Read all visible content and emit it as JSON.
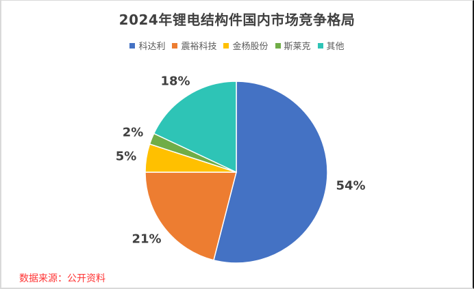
{
  "chart_data": {
    "type": "pie",
    "title": "2024年锂电结构件国内市场竞争格局",
    "categories": [
      "科达利",
      "震裕科技",
      "金杨股份",
      "斯莱克",
      "其他"
    ],
    "values": [
      54,
      21,
      5,
      2,
      18
    ],
    "unit": "%",
    "colors": [
      "#4472C4",
      "#ED7D31",
      "#FFC000",
      "#70AD47",
      "#2EC4B6"
    ],
    "data_labels": [
      "54%",
      "21%",
      "5%",
      "2%",
      "18%"
    ],
    "legend_position": "top",
    "start_angle_deg": 0,
    "direction": "clockwise",
    "source_note": "数据来源：公开资料"
  },
  "title": "2024年锂电结构件国内市场竞争格局",
  "legend": [
    {
      "label": "科达利",
      "color": "#4472C4"
    },
    {
      "label": "震裕科技",
      "color": "#ED7D31"
    },
    {
      "label": "金杨股份",
      "color": "#FFC000"
    },
    {
      "label": "斯莱克",
      "color": "#70AD47"
    },
    {
      "label": "其他",
      "color": "#2EC4B6"
    }
  ],
  "labels": {
    "kedali": "54%",
    "zhenyu": "21%",
    "jinyang": "5%",
    "slac": "2%",
    "other": "18%"
  },
  "source": "数据来源：公开资料"
}
